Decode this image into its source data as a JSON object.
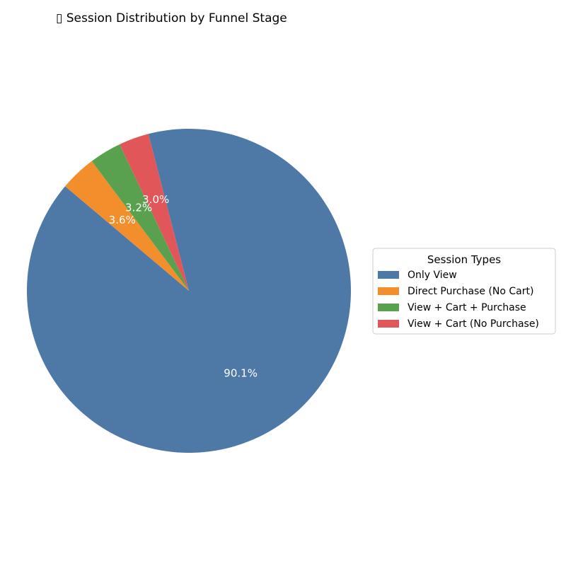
{
  "chart_data": {
    "type": "pie",
    "title": "▯ Session Distribution by Funnel Stage",
    "slices": [
      {
        "label": "Only View",
        "value": 90.1,
        "pct_label": "90.1%",
        "color": "#4e79a7"
      },
      {
        "label": "Direct Purchase (No Cart)",
        "value": 3.6,
        "pct_label": "3.6%",
        "color": "#f28e2b"
      },
      {
        "label": "View + Cart + Purchase",
        "value": 3.2,
        "pct_label": "3.2%",
        "color": "#59a14f"
      },
      {
        "label": "View + Cart (No Purchase)",
        "value": 3.0,
        "pct_label": "3.0%",
        "color": "#e15759"
      }
    ],
    "legend": {
      "title": "Session Types",
      "placement": "right"
    }
  }
}
